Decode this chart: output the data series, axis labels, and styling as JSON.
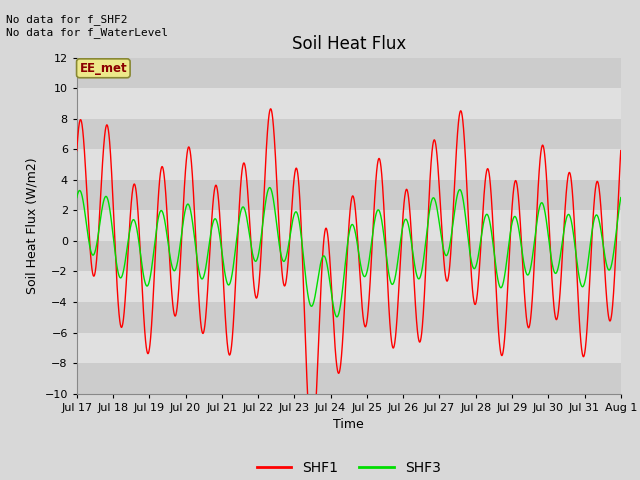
{
  "title": "Soil Heat Flux",
  "xlabel": "Time",
  "ylabel": "Soil Heat Flux (W/m2)",
  "ylim": [
    -10,
    12
  ],
  "yticks": [
    -10,
    -8,
    -6,
    -4,
    -2,
    0,
    2,
    4,
    6,
    8,
    10,
    12
  ],
  "x_labels": [
    "Jul 17",
    "Jul 18",
    "Jul 19",
    "Jul 20",
    "Jul 21",
    "Jul 22",
    "Jul 23",
    "Jul 24",
    "Jul 25",
    "Jul 26",
    "Jul 27",
    "Jul 28",
    "Jul 29",
    "Jul 30",
    "Jul 31",
    "Aug 1"
  ],
  "annotation_top": "No data for f_SHF2\nNo data for f_WaterLevel",
  "legend_box_label": "EE_met",
  "background_color": "#d8d8d8",
  "plot_bg_color": "#e8e8e8",
  "shf1_color": "red",
  "shf3_color": "#00dd00",
  "num_days": 15,
  "stripe_colors": [
    "#d8d8d8",
    "#e8e8e8"
  ],
  "stripe_yticks": [
    -10,
    -8,
    -6,
    -4,
    -2,
    0,
    2,
    4,
    6,
    8,
    10,
    12
  ]
}
